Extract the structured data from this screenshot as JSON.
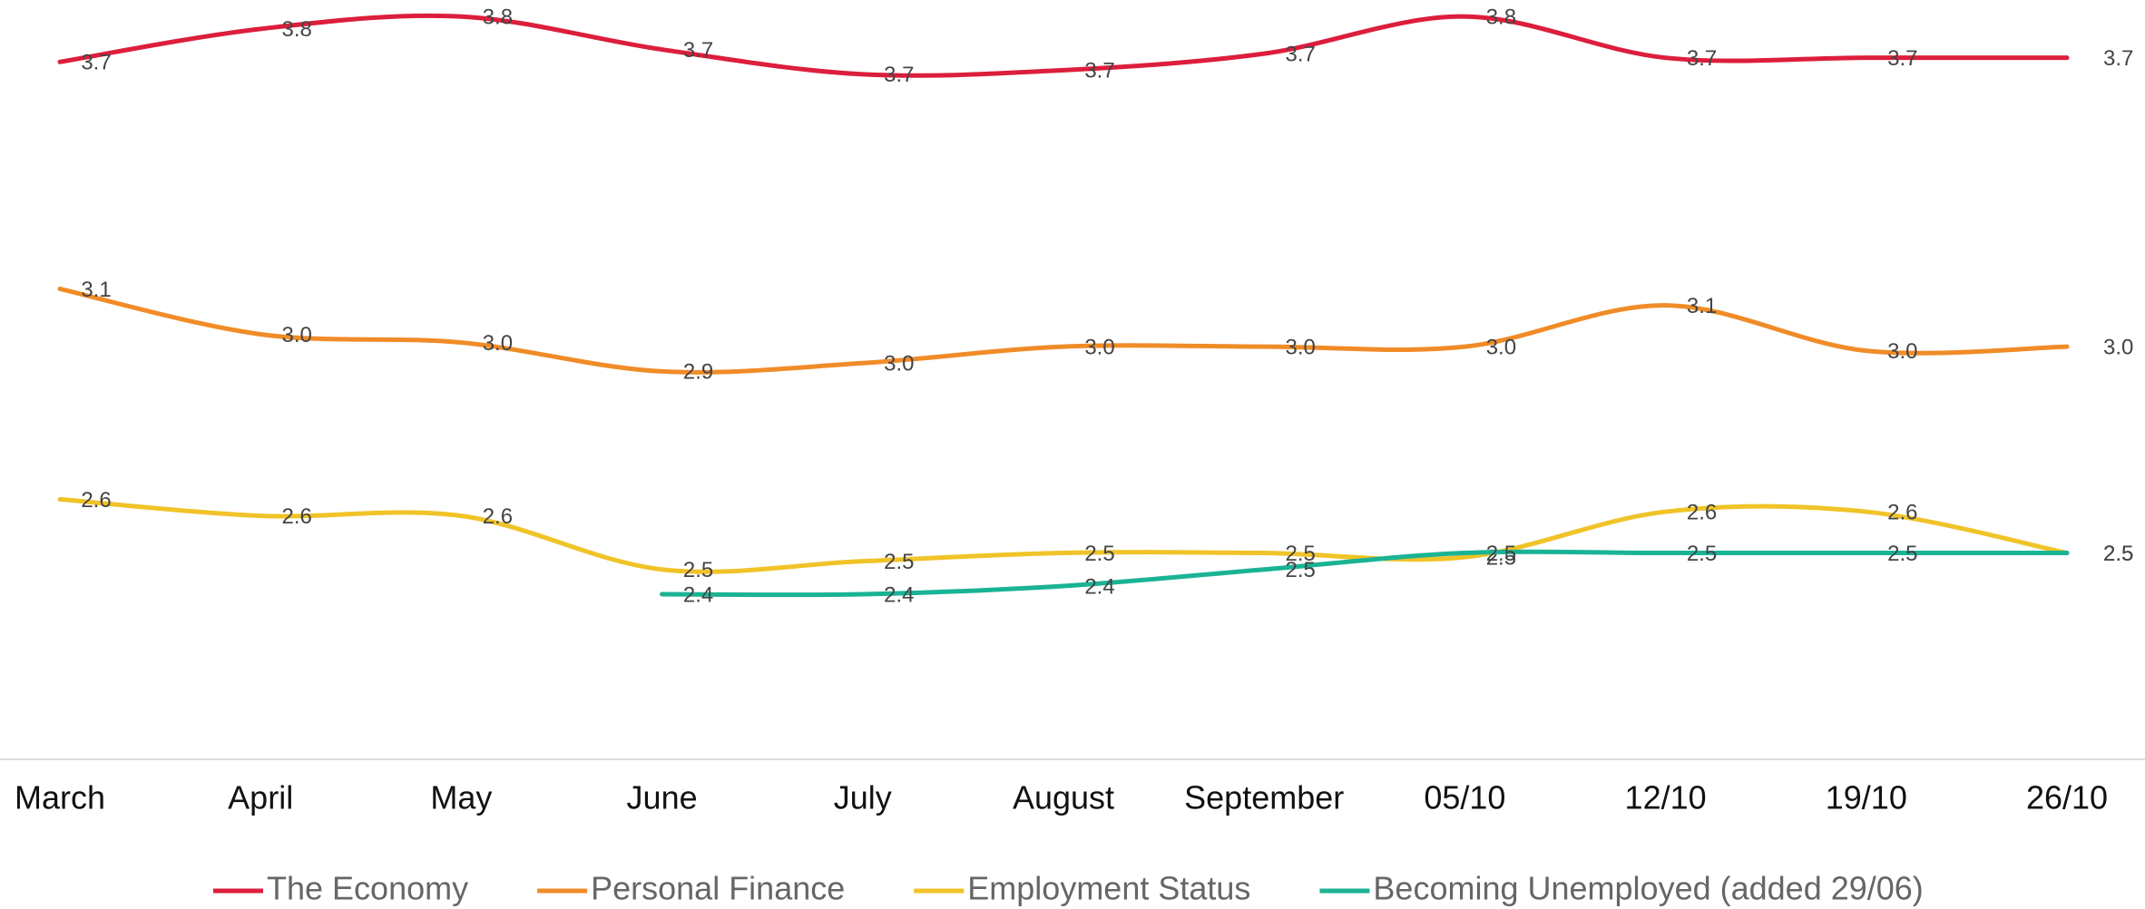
{
  "chart_data": {
    "type": "line",
    "categories": [
      "March",
      "April",
      "May",
      "June",
      "July",
      "August",
      "September",
      "05/10",
      "12/10",
      "19/10",
      "26/10"
    ],
    "ylim": [
      2.0,
      3.84
    ],
    "legend": "bottom",
    "series": [
      {
        "name": "The Economy",
        "color": "#dc1e3c",
        "values": [
          3.69,
          3.77,
          3.8,
          3.72,
          3.66,
          3.67,
          3.71,
          3.8,
          3.7,
          3.7,
          3.7
        ],
        "value_labels": [
          "3.7",
          "3.8",
          "3.8",
          "3.7",
          "3.7",
          "3.7",
          "3.7",
          "3.8",
          "3.7",
          "3.7",
          "3.7"
        ]
      },
      {
        "name": "Personal Finance",
        "color": "#f08c28",
        "values": [
          3.14,
          3.03,
          3.01,
          2.94,
          2.96,
          3.0,
          3.0,
          3.0,
          3.1,
          2.99,
          3.0
        ],
        "value_labels": [
          "3.1",
          "3.0",
          "3.0",
          "2.9",
          "3.0",
          "3.0",
          "3.0",
          "3.0",
          "3.1",
          "3.0",
          "3.0"
        ]
      },
      {
        "name": "Employment Status",
        "color": "#f0c328",
        "values": [
          2.63,
          2.59,
          2.59,
          2.46,
          2.48,
          2.5,
          2.5,
          2.49,
          2.6,
          2.6,
          2.5
        ],
        "value_labels": [
          "2.6",
          "2.6",
          "2.6",
          "2.5",
          "2.5",
          "2.5",
          "2.5",
          "2.5",
          "2.6",
          "2.6",
          "2.5"
        ]
      },
      {
        "name": "Becoming Unemployed (added 29/06)",
        "color": "#1ab394",
        "values": [
          null,
          null,
          null,
          2.4,
          2.4,
          2.42,
          2.46,
          2.5,
          2.5,
          2.5,
          2.5
        ],
        "value_labels": [
          null,
          null,
          null,
          "2.4",
          "2.4",
          "2.4",
          "2.5",
          "2.5",
          "2.5",
          "2.5",
          "2.5"
        ]
      }
    ]
  }
}
